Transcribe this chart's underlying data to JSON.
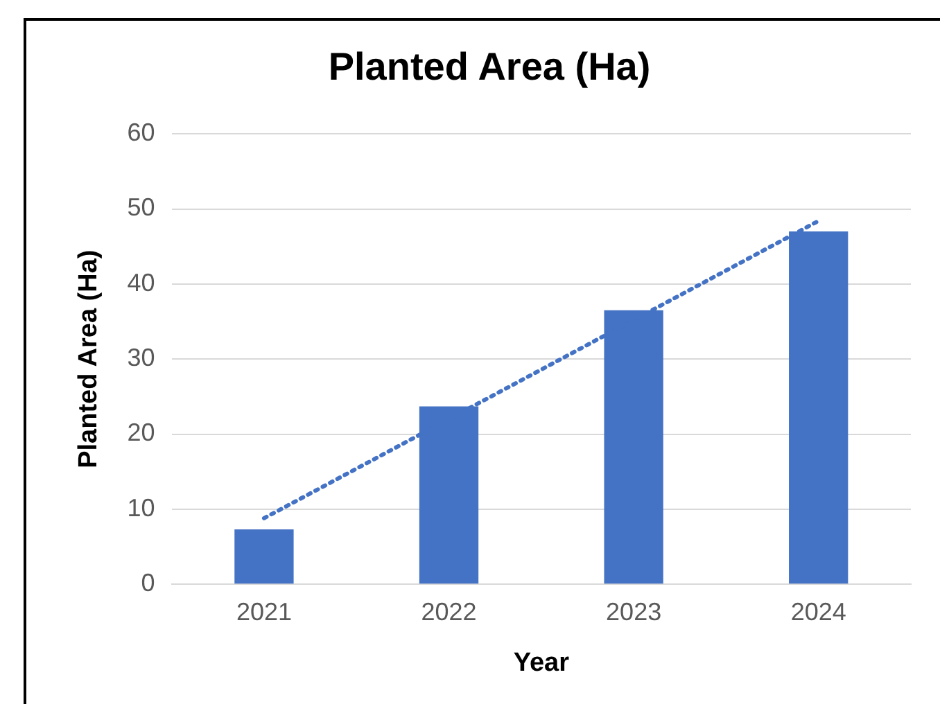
{
  "chart_data": {
    "type": "bar",
    "title": "Planted Area (Ha)",
    "xlabel": "Year",
    "ylabel": "Planted Area (Ha)",
    "categories": [
      "2021",
      "2022",
      "2023",
      "2024"
    ],
    "series": [
      {
        "color": "#4472c4",
        "values": [
          7.3,
          23.7,
          36.5,
          47.0
        ]
      },
      {
        "type": "line",
        "color": "#4472c4",
        "values": [
          8.8,
          22.0,
          35.2,
          48.4
        ],
        "line_style": "dotted",
        "marker": "none"
      }
    ],
    "ylim": [
      0,
      60
    ],
    "yticks": [
      0,
      10,
      20,
      30,
      40,
      50,
      60
    ],
    "grid": "y",
    "legend": false
  }
}
